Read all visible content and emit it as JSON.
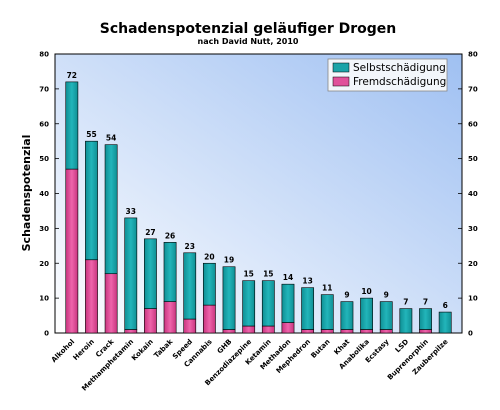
{
  "chart_data": {
    "type": "bar",
    "stacked": true,
    "title": "Schadenspotenzial geläufiger Drogen",
    "subtitle": "nach David Nutt, 2010",
    "ylabel": "Schadenspotenzial",
    "xlabel": "",
    "ylim": [
      0,
      80
    ],
    "yticks": [
      0,
      10,
      20,
      30,
      40,
      50,
      60,
      70,
      80
    ],
    "grid": false,
    "legend_position": "top-right",
    "categories": [
      "Alkohol",
      "Heroin",
      "Crack",
      "Methamphetamin",
      "Kokain",
      "Tabak",
      "Speed",
      "Cannabis",
      "GHB",
      "Benzodiazepine",
      "Ketamin",
      "Methadon",
      "Mephedron",
      "Butan",
      "Khat",
      "Anabolika",
      "Ecstasy",
      "LSD",
      "Buprenorphin",
      "Zauberpilze"
    ],
    "totals": [
      72,
      55,
      54,
      33,
      27,
      26,
      23,
      20,
      19,
      15,
      15,
      14,
      13,
      11,
      9,
      10,
      9,
      7,
      7,
      6
    ],
    "series": [
      {
        "name": "Fremdschädigung",
        "color": "#e0509a",
        "values": [
          47,
          21,
          17,
          1,
          7,
          9,
          4,
          8,
          1,
          2,
          2,
          3,
          1,
          1,
          1,
          1,
          1,
          0,
          1,
          0
        ]
      },
      {
        "name": "Selbstschädigung",
        "color": "#1aa3a8",
        "values": [
          25,
          34,
          37,
          32,
          20,
          17,
          19,
          12,
          18,
          13,
          13,
          11,
          12,
          10,
          8,
          9,
          8,
          7,
          6,
          6
        ]
      }
    ],
    "legend_order": [
      "Selbstschädigung",
      "Fremdschädigung"
    ]
  }
}
